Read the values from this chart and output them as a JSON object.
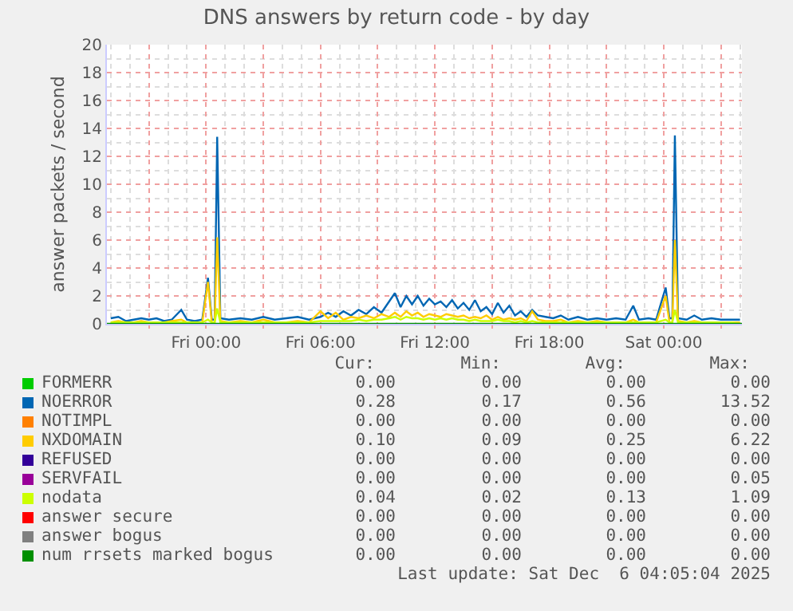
{
  "chart_data": {
    "type": "line",
    "title": "DNS answers by return code - by day",
    "ylabel": "answer packets / second",
    "x": [
      "2025-12-04T19:00",
      "2025-12-04T19:24",
      "2025-12-04T19:48",
      "2025-12-04T20:12",
      "2025-12-04T20:36",
      "2025-12-04T21:00",
      "2025-12-04T21:24",
      "2025-12-04T21:48",
      "2025-12-04T22:12",
      "2025-12-04T22:42",
      "2025-12-04T23:00",
      "2025-12-04T23:24",
      "2025-12-04T23:48",
      "2025-12-05T00:06",
      "2025-12-05T00:18",
      "2025-12-05T00:27",
      "2025-12-05T00:35",
      "2025-12-05T00:45",
      "2025-12-05T01:12",
      "2025-12-05T01:48",
      "2025-12-05T02:24",
      "2025-12-05T03:00",
      "2025-12-05T03:36",
      "2025-12-05T04:12",
      "2025-12-05T04:48",
      "2025-12-05T05:24",
      "2025-12-05T06:00",
      "2025-12-05T06:24",
      "2025-12-05T06:48",
      "2025-12-05T07:12",
      "2025-12-05T07:36",
      "2025-12-05T08:00",
      "2025-12-05T08:24",
      "2025-12-05T08:48",
      "2025-12-05T09:12",
      "2025-12-05T09:36",
      "2025-12-05T09:54",
      "2025-12-05T10:12",
      "2025-12-05T10:30",
      "2025-12-05T10:48",
      "2025-12-05T11:06",
      "2025-12-05T11:24",
      "2025-12-05T11:42",
      "2025-12-05T12:00",
      "2025-12-05T12:18",
      "2025-12-05T12:36",
      "2025-12-05T12:54",
      "2025-12-05T13:12",
      "2025-12-05T13:30",
      "2025-12-05T13:48",
      "2025-12-05T14:06",
      "2025-12-05T14:24",
      "2025-12-05T14:42",
      "2025-12-05T15:00",
      "2025-12-05T15:18",
      "2025-12-05T15:36",
      "2025-12-05T15:54",
      "2025-12-05T16:12",
      "2025-12-05T16:30",
      "2025-12-05T16:48",
      "2025-12-05T17:06",
      "2025-12-05T17:24",
      "2025-12-05T17:48",
      "2025-12-05T18:12",
      "2025-12-05T18:36",
      "2025-12-05T19:00",
      "2025-12-05T19:30",
      "2025-12-05T20:00",
      "2025-12-05T20:30",
      "2025-12-05T21:00",
      "2025-12-05T21:30",
      "2025-12-05T22:00",
      "2025-12-05T22:24",
      "2025-12-05T22:42",
      "2025-12-05T23:12",
      "2025-12-05T23:36",
      "2025-12-06T00:06",
      "2025-12-06T00:18",
      "2025-12-06T00:27",
      "2025-12-06T00:35",
      "2025-12-06T00:45",
      "2025-12-06T01:12",
      "2025-12-06T01:36",
      "2025-12-06T02:00",
      "2025-12-06T02:30",
      "2025-12-06T03:00",
      "2025-12-06T03:30",
      "2025-12-06T04:00"
    ],
    "series": [
      {
        "name": "FORMERR",
        "color": "#00cc00",
        "values": [
          null,
          null,
          null,
          null,
          null,
          null,
          null,
          null,
          null,
          null,
          null,
          null,
          null,
          null,
          null,
          null,
          null,
          null,
          null,
          null,
          null,
          null,
          null,
          null,
          null,
          null,
          null,
          null,
          null,
          null,
          null,
          null,
          null,
          null,
          null,
          null,
          null,
          null,
          null,
          null,
          null,
          null,
          null,
          null,
          null,
          null,
          null,
          null,
          null,
          null,
          null,
          null,
          null,
          null,
          null,
          null,
          null,
          null,
          null,
          null,
          null,
          null,
          null,
          null,
          null,
          null,
          null,
          null,
          null,
          null,
          null,
          null,
          null,
          null,
          null,
          null,
          null,
          null,
          null,
          null,
          null,
          null,
          null,
          null,
          null,
          null,
          null,
          null
        ]
      },
      {
        "name": "NOERROR",
        "color": "#0066b3",
        "values": [
          0.4,
          0.5,
          0.2,
          0.3,
          0.4,
          0.3,
          0.4,
          0.2,
          0.3,
          1.0,
          0.3,
          0.2,
          0.3,
          3.3,
          0.3,
          0.3,
          13.4,
          0.4,
          0.3,
          0.4,
          0.3,
          0.5,
          0.3,
          0.4,
          0.5,
          0.3,
          0.5,
          0.8,
          0.5,
          0.9,
          0.6,
          1.0,
          0.7,
          1.2,
          0.8,
          1.6,
          2.2,
          1.2,
          2.0,
          1.4,
          2.0,
          1.3,
          1.8,
          1.4,
          1.6,
          1.2,
          1.7,
          1.1,
          1.5,
          1.0,
          1.7,
          0.9,
          1.2,
          0.7,
          1.5,
          0.8,
          1.3,
          0.6,
          0.9,
          0.5,
          1.0,
          0.6,
          0.5,
          0.4,
          0.6,
          0.3,
          0.5,
          0.3,
          0.4,
          0.3,
          0.4,
          0.3,
          1.3,
          0.3,
          0.4,
          0.3,
          2.6,
          0.4,
          0.4,
          13.5,
          0.4,
          0.3,
          0.6,
          0.3,
          0.4,
          0.3,
          0.3,
          0.3
        ]
      },
      {
        "name": "NOTIMPL",
        "color": "#ff8000",
        "values": [
          null,
          null,
          null,
          null,
          null,
          null,
          null,
          null,
          null,
          null,
          null,
          null,
          null,
          null,
          null,
          null,
          null,
          null,
          null,
          null,
          null,
          null,
          null,
          null,
          null,
          null,
          null,
          null,
          null,
          null,
          null,
          null,
          null,
          null,
          null,
          null,
          null,
          null,
          null,
          null,
          null,
          null,
          null,
          null,
          null,
          null,
          null,
          null,
          null,
          null,
          null,
          null,
          null,
          null,
          null,
          null,
          null,
          null,
          null,
          null,
          null,
          null,
          null,
          null,
          null,
          null,
          null,
          null,
          null,
          null,
          null,
          null,
          null,
          null,
          null,
          null,
          null,
          null,
          null,
          null,
          null,
          null,
          null,
          null,
          null,
          null,
          null,
          null
        ]
      },
      {
        "name": "NXDOMAIN",
        "color": "#ffcc00",
        "values": [
          0.1,
          0.2,
          0.1,
          0.1,
          0.2,
          0.1,
          0.1,
          0.1,
          0.2,
          0.3,
          0.1,
          0.1,
          0.1,
          3.0,
          0.1,
          0.1,
          6.2,
          0.2,
          0.1,
          0.2,
          0.1,
          0.3,
          0.1,
          0.1,
          0.2,
          0.1,
          0.9,
          0.4,
          0.8,
          0.3,
          0.5,
          0.4,
          0.6,
          0.4,
          0.7,
          0.5,
          0.8,
          0.5,
          0.9,
          0.6,
          0.8,
          0.5,
          0.7,
          0.6,
          0.5,
          0.7,
          0.6,
          0.5,
          0.6,
          0.4,
          0.5,
          0.4,
          0.6,
          0.3,
          0.5,
          0.3,
          0.4,
          0.3,
          0.4,
          0.2,
          0.9,
          0.3,
          0.2,
          0.2,
          0.3,
          0.1,
          0.2,
          0.1,
          0.2,
          0.1,
          0.1,
          0.1,
          0.3,
          0.1,
          0.1,
          0.1,
          2.0,
          0.1,
          0.1,
          6.0,
          0.2,
          0.1,
          0.2,
          0.1,
          0.1,
          0.1,
          0.1,
          0.1
        ]
      },
      {
        "name": "REFUSED",
        "color": "#330099",
        "values": [
          null,
          null,
          null,
          null,
          null,
          null,
          null,
          null,
          null,
          null,
          null,
          null,
          null,
          null,
          null,
          null,
          null,
          null,
          null,
          null,
          null,
          null,
          null,
          null,
          null,
          null,
          null,
          null,
          null,
          null,
          null,
          null,
          null,
          null,
          null,
          null,
          null,
          null,
          null,
          null,
          null,
          null,
          null,
          null,
          null,
          null,
          null,
          null,
          null,
          null,
          null,
          null,
          null,
          null,
          null,
          null,
          null,
          null,
          null,
          null,
          null,
          null,
          null,
          null,
          null,
          null,
          null,
          null,
          null,
          null,
          null,
          null,
          null,
          null,
          null,
          null,
          null,
          null,
          null,
          null,
          null,
          null,
          null,
          null,
          null,
          null,
          null,
          null
        ]
      },
      {
        "name": "SERVFAIL",
        "color": "#990099",
        "values": [
          null,
          null,
          null,
          null,
          null,
          null,
          null,
          null,
          null,
          null,
          null,
          null,
          null,
          null,
          null,
          null,
          null,
          null,
          null,
          null,
          null,
          null,
          null,
          null,
          null,
          null,
          null,
          null,
          null,
          null,
          null,
          null,
          null,
          null,
          null,
          null,
          null,
          null,
          null,
          null,
          null,
          null,
          null,
          null,
          null,
          null,
          null,
          null,
          null,
          null,
          null,
          null,
          null,
          null,
          null,
          null,
          null,
          null,
          null,
          null,
          null,
          null,
          null,
          null,
          null,
          null,
          null,
          null,
          null,
          null,
          null,
          null,
          null,
          null,
          null,
          null,
          null,
          null,
          null,
          null,
          null,
          null,
          null,
          null,
          null,
          null,
          null,
          null
        ]
      },
      {
        "name": "nodata",
        "color": "#ccff00",
        "values": [
          0.1,
          0.1,
          0.1,
          0.1,
          0.1,
          0.1,
          0.1,
          0.1,
          0.1,
          0.1,
          0.1,
          0.1,
          0.1,
          0.3,
          0.1,
          0.1,
          1.1,
          0.1,
          0.1,
          0.1,
          0.1,
          0.1,
          0.1,
          0.1,
          0.1,
          0.1,
          0.2,
          0.2,
          0.2,
          0.2,
          0.2,
          0.3,
          0.2,
          0.3,
          0.3,
          0.4,
          0.5,
          0.3,
          0.5,
          0.4,
          0.4,
          0.3,
          0.4,
          0.3,
          0.4,
          0.3,
          0.4,
          0.3,
          0.3,
          0.2,
          0.3,
          0.2,
          0.2,
          0.2,
          0.3,
          0.2,
          0.2,
          0.1,
          0.2,
          0.1,
          0.2,
          0.1,
          0.1,
          0.1,
          0.1,
          0.1,
          0.1,
          0.1,
          0.1,
          0.1,
          0.1,
          0.1,
          0.1,
          0.1,
          0.1,
          0.1,
          0.3,
          0.1,
          0.1,
          1.0,
          0.1,
          0.1,
          0.1,
          0.1,
          0.1,
          0.1,
          0.1,
          0.0
        ]
      },
      {
        "name": "answer secure",
        "color": "#ff0000",
        "values": [
          null,
          null,
          null,
          null,
          null,
          null,
          null,
          null,
          null,
          null,
          null,
          null,
          null,
          null,
          null,
          null,
          null,
          null,
          null,
          null,
          null,
          null,
          null,
          null,
          null,
          null,
          null,
          null,
          null,
          null,
          null,
          null,
          null,
          null,
          null,
          null,
          null,
          null,
          null,
          null,
          null,
          null,
          null,
          null,
          null,
          null,
          null,
          null,
          null,
          null,
          null,
          null,
          null,
          null,
          null,
          null,
          null,
          null,
          null,
          null,
          null,
          null,
          null,
          null,
          null,
          null,
          null,
          null,
          null,
          null,
          null,
          null,
          null,
          null,
          null,
          null,
          null,
          null,
          null,
          null,
          null,
          null,
          null,
          null,
          null,
          null,
          null,
          null
        ]
      },
      {
        "name": "answer bogus",
        "color": "#808080",
        "values": [
          null,
          null,
          null,
          null,
          null,
          null,
          null,
          null,
          null,
          null,
          null,
          null,
          null,
          null,
          null,
          null,
          null,
          null,
          null,
          null,
          null,
          null,
          null,
          null,
          null,
          null,
          null,
          null,
          null,
          null,
          null,
          null,
          null,
          null,
          null,
          null,
          null,
          null,
          null,
          null,
          null,
          null,
          null,
          null,
          null,
          null,
          null,
          null,
          null,
          null,
          null,
          null,
          null,
          null,
          null,
          null,
          null,
          null,
          null,
          null,
          null,
          null,
          null,
          null,
          null,
          null,
          null,
          null,
          null,
          null,
          null,
          null,
          null,
          null,
          null,
          null,
          null,
          null,
          null,
          null,
          null,
          null,
          null,
          null,
          null,
          null,
          null,
          null
        ]
      },
      {
        "name": "num rrsets marked bogus",
        "color": "#008f00",
        "x": [
          "2025-12-04T18:48",
          "2025-12-06T04:06"
        ],
        "values": [
          0,
          0
        ]
      }
    ],
    "xlim": [
      "2025-12-04T18:48",
      "2025-12-06T04:06"
    ],
    "xticks": [
      {
        "value": "2025-12-04T21:00",
        "label": null
      },
      {
        "value": "2025-12-05T00:00",
        "label": "Fri 00:00"
      },
      {
        "value": "2025-12-05T03:00",
        "label": null
      },
      {
        "value": "2025-12-05T06:00",
        "label": "Fri 06:00"
      },
      {
        "value": "2025-12-05T09:00",
        "label": null
      },
      {
        "value": "2025-12-05T12:00",
        "label": "Fri 12:00"
      },
      {
        "value": "2025-12-05T15:00",
        "label": null
      },
      {
        "value": "2025-12-05T18:00",
        "label": "Fri 18:00"
      },
      {
        "value": "2025-12-05T21:00",
        "label": null
      },
      {
        "value": "2025-12-06T00:00",
        "label": "Sat 00:00"
      },
      {
        "value": "2025-12-06T03:00",
        "label": null
      }
    ],
    "ylim": [
      0,
      20
    ],
    "yticks": [
      0,
      2,
      4,
      6,
      8,
      10,
      12,
      14,
      16,
      18,
      20
    ],
    "grid": true,
    "legend": "bottom",
    "marker": "none",
    "line_style": "solid",
    "annotations": [
      "Cur:",
      "Min:",
      "Avg:",
      "Max:",
      "0.00",
      "0.00",
      "0.00",
      "0.00",
      "0.28",
      "0.17",
      "0.56",
      "13.52",
      "0.00",
      "0.00",
      "0.00",
      "0.00",
      "0.10",
      "0.09",
      "0.25",
      "6.22",
      "0.00",
      "0.00",
      "0.00",
      "0.00",
      "0.00",
      "0.00",
      "0.00",
      "0.05",
      "0.04",
      "0.02",
      "0.13",
      "1.09",
      "0.00",
      "0.00",
      "0.00",
      "0.00",
      "0.00",
      "0.00",
      "0.00",
      "0.00",
      "0.00",
      "0.00",
      "0.00",
      "0.00",
      "Last update: Sat Dec  6 04:05:04 2025"
    ]
  }
}
